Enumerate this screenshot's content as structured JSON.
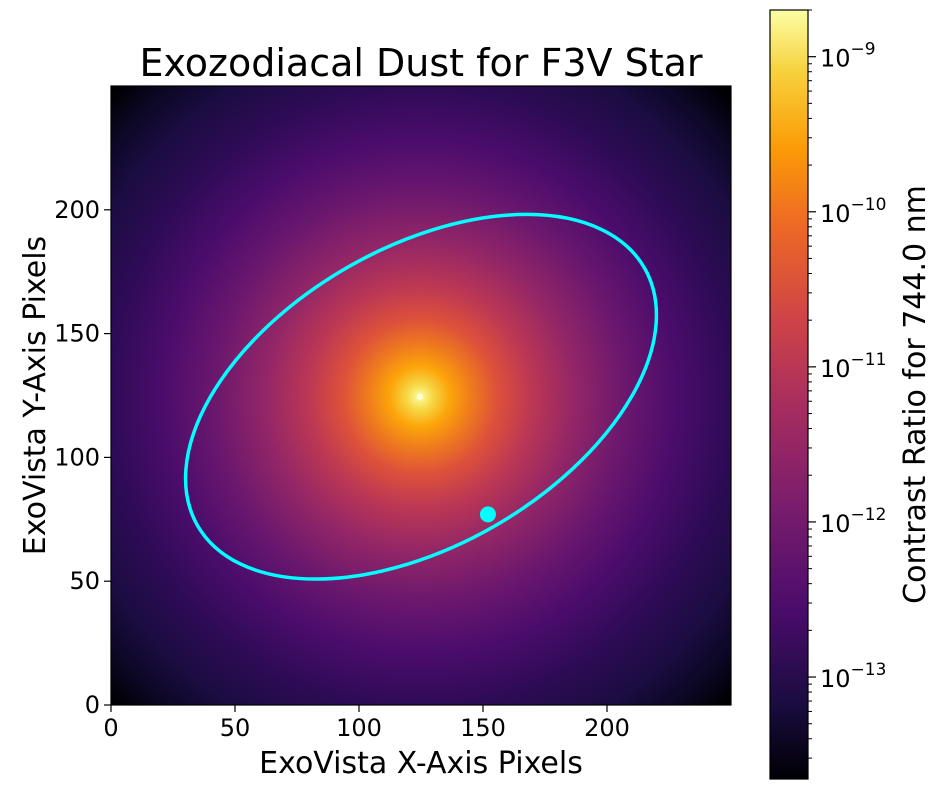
{
  "chart_data": {
    "type": "heatmap",
    "title": "Exozodiacal Dust for F3V Star",
    "xlabel": "ExoVista X-Axis Pixels",
    "ylabel": "ExoVista Y-Axis Pixels",
    "xlim": [
      0,
      250
    ],
    "ylim": [
      0,
      250
    ],
    "xticks": [
      0,
      50,
      100,
      150,
      200
    ],
    "yticks": [
      0,
      50,
      100,
      150,
      200
    ],
    "xtick_labels": [
      "0",
      "50",
      "100",
      "150",
      "200"
    ],
    "ytick_labels": [
      "0",
      "50",
      "100",
      "150",
      "200"
    ],
    "colormap": "inferno",
    "colorbar": {
      "label": "Contrast Ratio for 744.0 nm",
      "scale": "log",
      "range": [
        2.2e-14,
        2e-09
      ],
      "ticks": [
        1e-13,
        1e-12,
        1e-11,
        1e-10,
        1e-09
      ],
      "tick_bases": [
        "10",
        "10",
        "10",
        "10",
        "10"
      ],
      "tick_exponents": [
        "−13",
        "−12",
        "−11",
        "−10",
        "−9"
      ]
    },
    "star_center": [
      124.5,
      124.5
    ],
    "orbit": {
      "color": "#00FFFF",
      "center": [
        125,
        124.5
      ],
      "semi_major": 104,
      "semi_minor": 60,
      "angle_deg": 30
    },
    "planet": {
      "x": 152,
      "y": 77,
      "color": "#00FFFF"
    }
  }
}
